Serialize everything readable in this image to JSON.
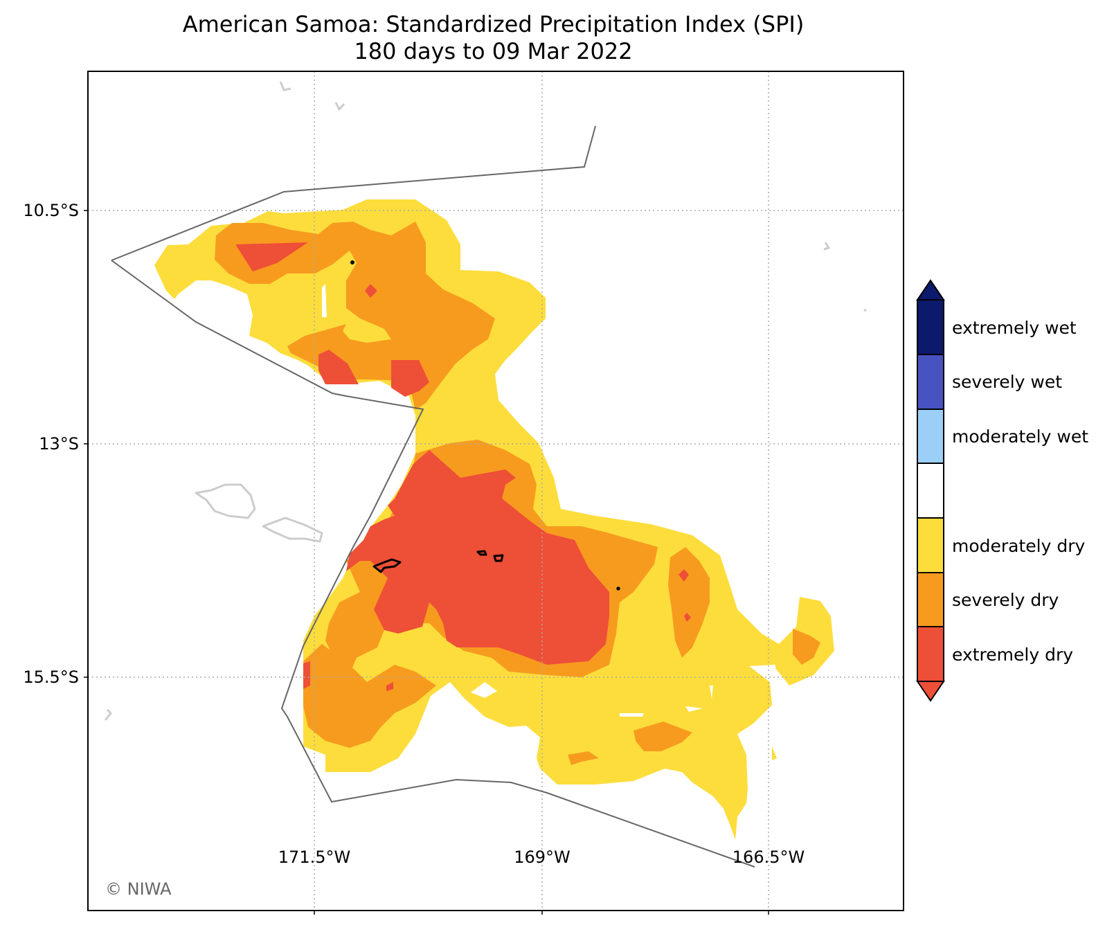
{
  "title": {
    "line1": "American Samoa: Standardized Precipitation Index (SPI)",
    "line2": "180 days to 09 Mar 2022"
  },
  "axes": {
    "lat_labels": [
      "10.5°S",
      "13°S",
      "15.5°S"
    ],
    "lon_labels": [
      "171.5°W",
      "169°W",
      "166.5°W"
    ]
  },
  "legend": {
    "categories": [
      {
        "label": "extremely wet",
        "color": "#0c1a6b"
      },
      {
        "label": "severely wet",
        "color": "#4653c0"
      },
      {
        "label": "moderately wet",
        "color": "#9ccff8"
      },
      {
        "label": "",
        "color": "#ffffff"
      },
      {
        "label": "moderately dry",
        "color": "#fddd3c"
      },
      {
        "label": "severely dry",
        "color": "#f79b1f"
      },
      {
        "label": "extremely dry",
        "color": "#ee4f37"
      }
    ]
  },
  "credit": "© NIWA",
  "colors": {
    "moderately_dry": "#fddd3c",
    "severely_dry": "#f79b1f",
    "extremely_dry": "#ee4f37",
    "eez_boundary": "#666666",
    "gridline": "#aaaaaa",
    "other_islands": "#cccccc",
    "samoa_islands": "#000000"
  }
}
